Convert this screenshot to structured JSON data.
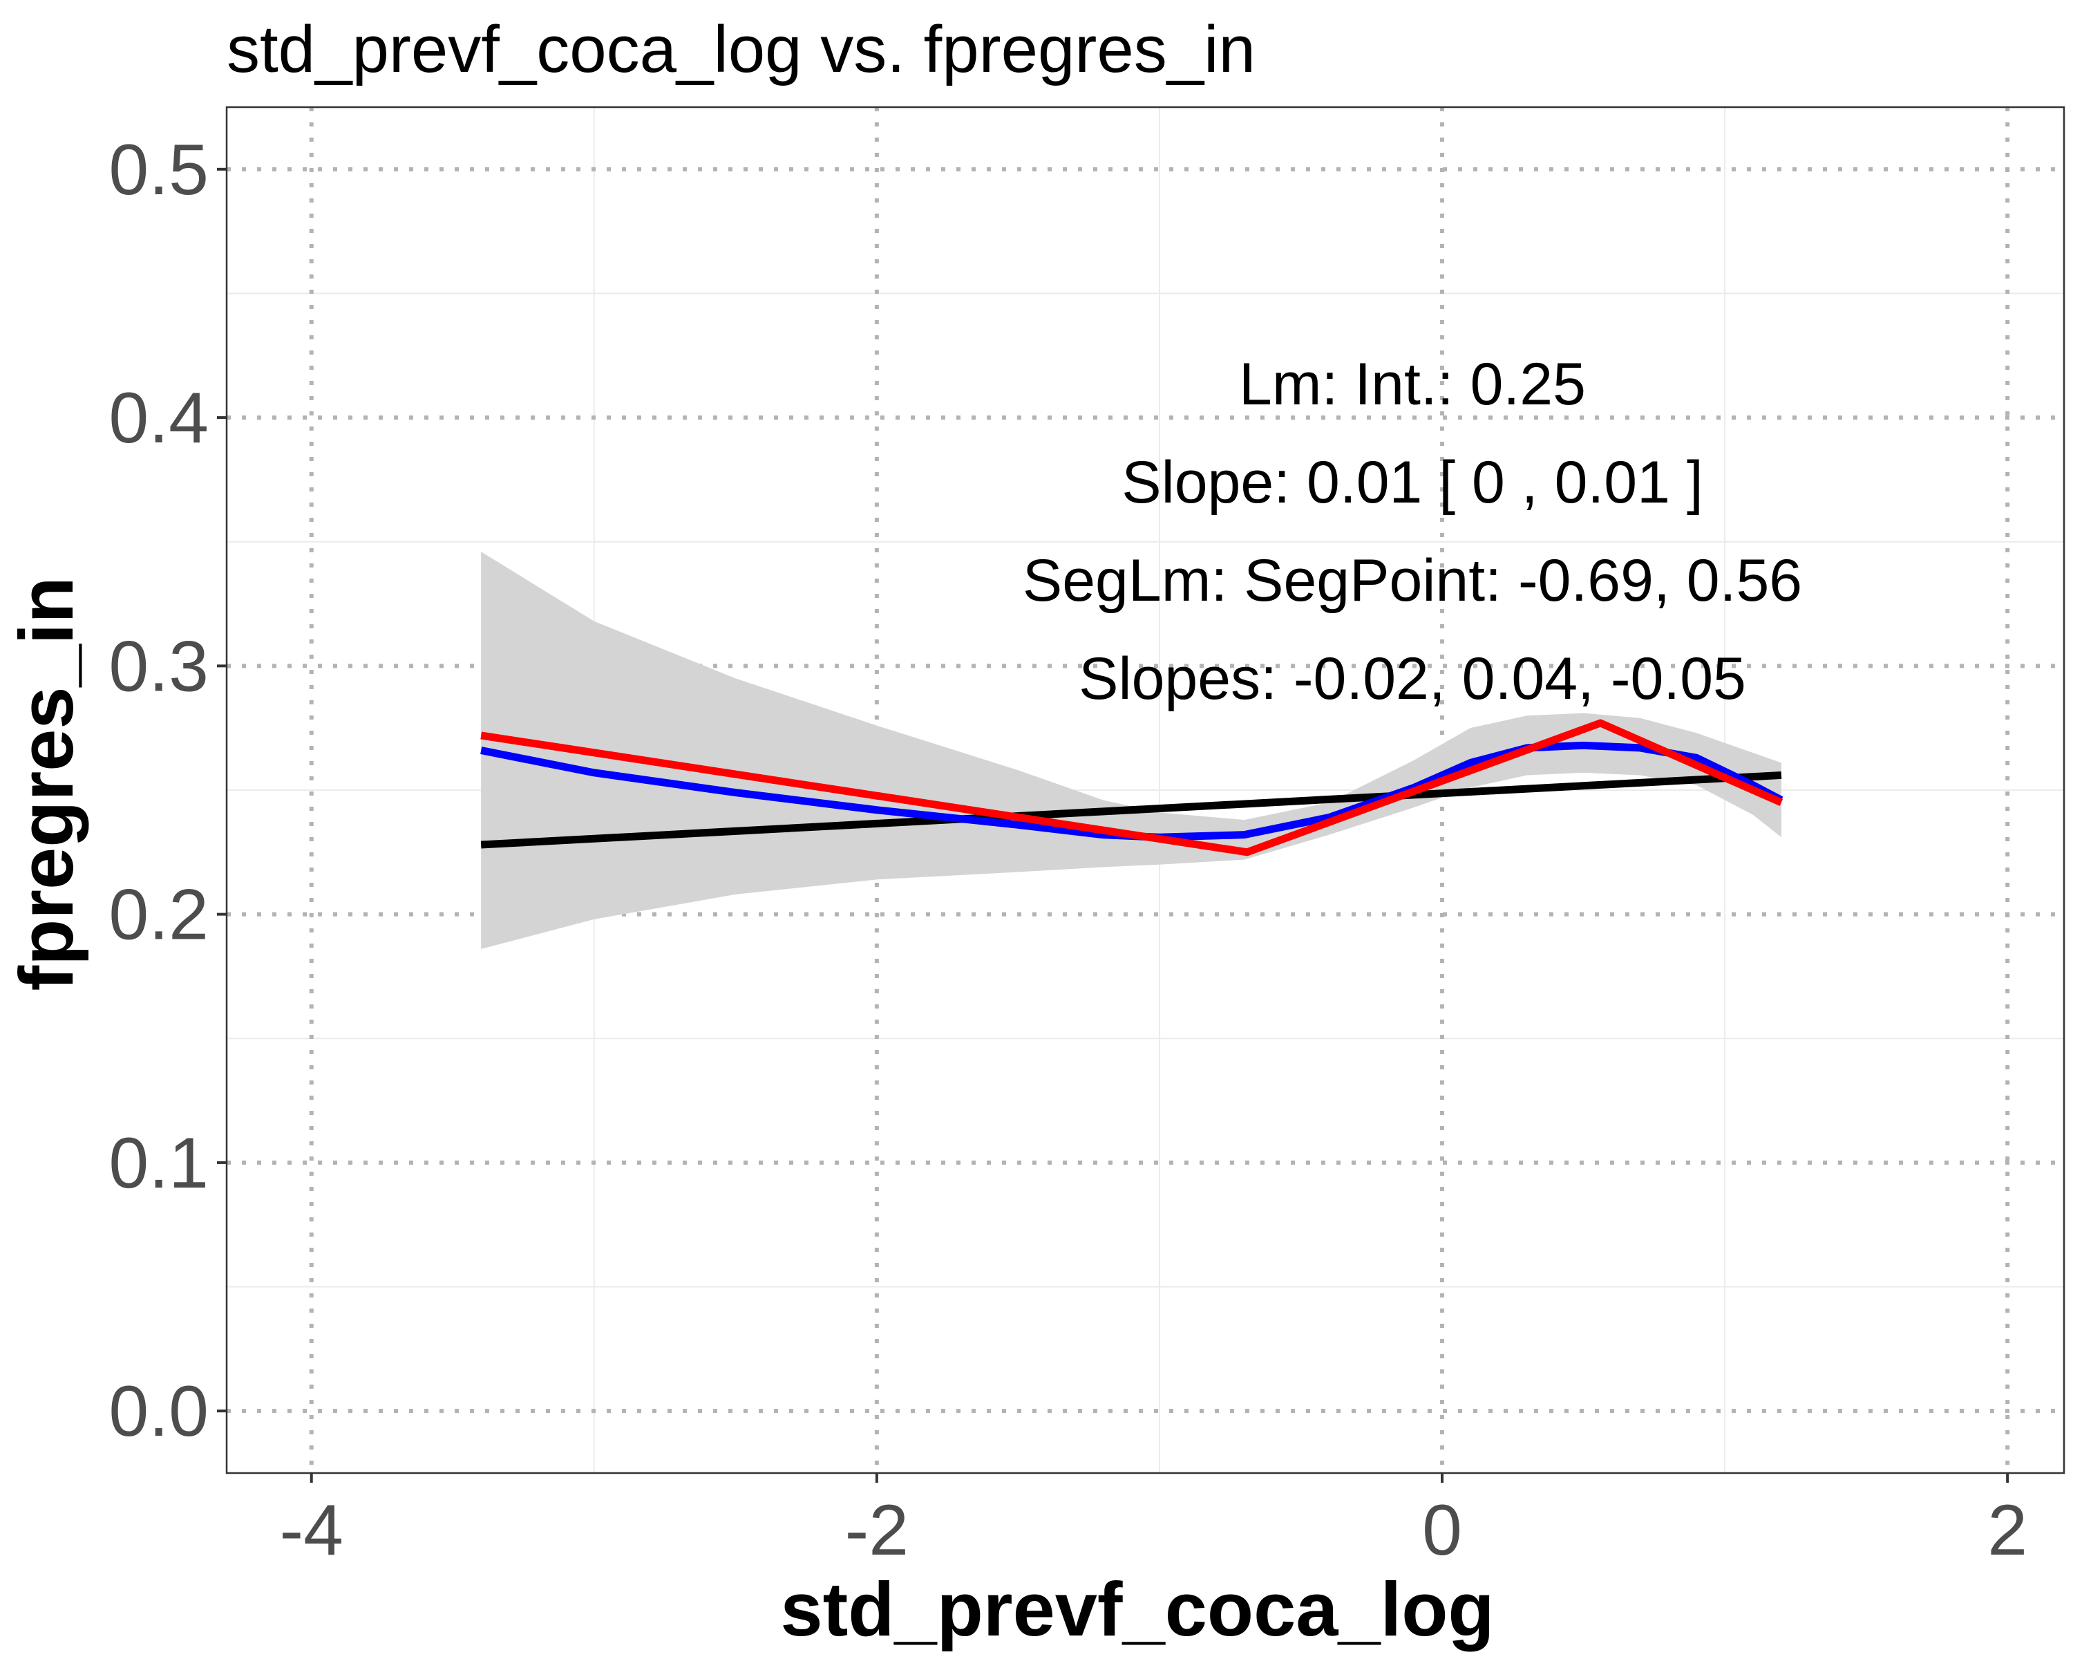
{
  "chart_data": {
    "type": "line",
    "title": "std_prevf_coca_log vs. fpregres_in",
    "xlabel": "std_prevf_coca_log",
    "ylabel": "fpregres_in",
    "xlim": [
      -4.3,
      2.2
    ],
    "ylim": [
      -0.025,
      0.525
    ],
    "x_ticks": [
      -4,
      -2,
      0,
      2
    ],
    "x_tick_labels": [
      "-4",
      "-2",
      "0",
      "2"
    ],
    "y_ticks": [
      0.0,
      0.1,
      0.2,
      0.3,
      0.4,
      0.5
    ],
    "y_tick_labels": [
      "0.0",
      "0.1",
      "0.2",
      "0.3",
      "0.4",
      "0.5"
    ],
    "grid": true,
    "legend": "none",
    "colors": {
      "lm_line": "#000000",
      "smooth_line": "#0000ff",
      "segmented_line": "#ff0000",
      "confidence_band": "#d4d4d4",
      "major_grid": "#b3b3b3",
      "minor_grid": "#ebebeb"
    },
    "series": [
      {
        "role": "linear-fit",
        "x": [
          -3.4,
          1.2
        ],
        "y": [
          0.228,
          0.256
        ]
      },
      {
        "role": "smooth-fit",
        "x": [
          -3.4,
          -3.0,
          -2.5,
          -2.0,
          -1.5,
          -1.2,
          -1.0,
          -0.7,
          -0.4,
          -0.1,
          0.1,
          0.3,
          0.5,
          0.7,
          0.9,
          1.1,
          1.2
        ],
        "y": [
          0.266,
          0.257,
          0.249,
          0.242,
          0.236,
          0.232,
          0.231,
          0.232,
          0.239,
          0.251,
          0.261,
          0.267,
          0.268,
          0.267,
          0.263,
          0.252,
          0.246
        ]
      },
      {
        "role": "segmented-fit",
        "x": [
          -3.4,
          -0.69,
          0.56,
          1.2
        ],
        "y": [
          0.272,
          0.225,
          0.277,
          0.245
        ]
      },
      {
        "role": "confidence-band",
        "x": [
          -3.4,
          -3.0,
          -2.5,
          -2.0,
          -1.5,
          -1.2,
          -1.0,
          -0.7,
          -0.4,
          -0.1,
          0.1,
          0.3,
          0.5,
          0.7,
          0.9,
          1.1,
          1.2
        ],
        "upper": [
          0.346,
          0.318,
          0.295,
          0.276,
          0.258,
          0.246,
          0.241,
          0.238,
          0.245,
          0.262,
          0.275,
          0.28,
          0.281,
          0.279,
          0.273,
          0.265,
          0.261
        ],
        "lower": [
          0.186,
          0.198,
          0.208,
          0.214,
          0.217,
          0.219,
          0.22,
          0.222,
          0.232,
          0.243,
          0.251,
          0.256,
          0.257,
          0.256,
          0.252,
          0.24,
          0.231
        ]
      }
    ],
    "annotations": [
      "Lm: Int.: 0.25",
      "Slope: 0.01 [ 0 , 0.01 ]",
      "SegLm: SegPoint: -0.69, 0.56",
      "Slopes: -0.02, 0.04, -0.05"
    ]
  }
}
